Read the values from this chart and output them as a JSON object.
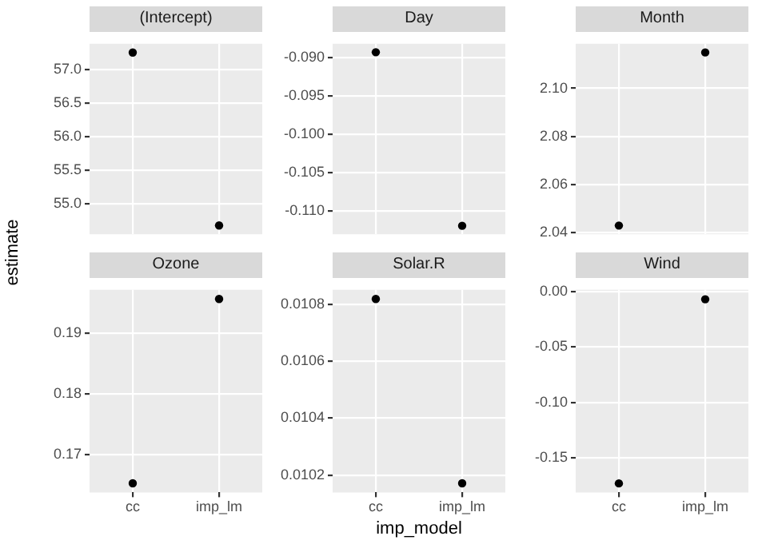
{
  "chart_data": [
    {
      "type": "scatter",
      "title": "(Intercept)",
      "ylabel": "estimate",
      "categories": [
        null,
        null
      ],
      "series": [
        {
          "color": "#000000",
          "values": [
            57.25,
            54.68
          ]
        }
      ],
      "ylim": [
        54.55,
        57.38
      ],
      "yticks": [
        {
          "value": 55,
          "label": "55.0"
        },
        55.5,
        {
          "value": 56,
          "label": "56.0"
        },
        56.5,
        {
          "value": 57,
          "label": "57.0"
        }
      ],
      "grid": true,
      "marker": "circle",
      "tick_labels": "y"
    },
    {
      "type": "scatter",
      "title": "Day",
      "categories": [
        null,
        null
      ],
      "series": [
        {
          "color": "#000000",
          "values": [
            -0.0893,
            -0.1119
          ]
        }
      ],
      "ylim": [
        -0.113,
        -0.0882
      ],
      "yticks": [
        {
          "value": -0.11,
          "label": "-0.110"
        },
        -0.105,
        {
          "value": -0.1,
          "label": "-0.100"
        },
        -0.095,
        {
          "value": -0.09,
          "label": "-0.090"
        }
      ],
      "grid": true,
      "marker": "circle",
      "tick_labels": "y"
    },
    {
      "type": "scatter",
      "title": "Month",
      "categories": [
        null,
        null
      ],
      "series": [
        {
          "color": "#000000",
          "values": [
            2.043,
            2.1149
          ]
        }
      ],
      "ylim": [
        2.0394,
        2.1185
      ],
      "yticks": [
        2.04,
        2.06,
        2.08,
        {
          "value": 2.1,
          "label": "2.10"
        }
      ],
      "grid": true,
      "marker": "circle",
      "tick_labels": "y"
    },
    {
      "type": "scatter",
      "title": "Ozone",
      "categories": [
        "cc",
        "imp_lm"
      ],
      "series": [
        {
          "color": "#000000",
          "values": [
            0.1653,
            0.1956
          ]
        }
      ],
      "ylim": [
        0.1638,
        0.1971
      ],
      "yticks": [
        0.17,
        0.18,
        0.19
      ],
      "grid": true,
      "marker": "circle"
    },
    {
      "type": "scatter",
      "title": "Solar.R",
      "xlabel": "imp_model",
      "categories": [
        "cc",
        "imp_lm"
      ],
      "series": [
        {
          "color": "#000000",
          "values": [
            0.010818,
            0.010171
          ]
        }
      ],
      "ylim": [
        0.010139,
        0.01085
      ],
      "yticks": [
        0.0102,
        0.0104,
        0.0106,
        0.0108
      ],
      "grid": true,
      "marker": "circle"
    },
    {
      "type": "scatter",
      "title": "Wind",
      "categories": [
        "cc",
        "imp_lm"
      ],
      "series": [
        {
          "color": "#000000",
          "values": [
            -0.173,
            -0.007
          ]
        }
      ],
      "ylim": [
        -0.1811,
        0.0015
      ],
      "yticks": [
        -0.15,
        {
          "value": -0.1,
          "label": "-0.10"
        },
        -0.05,
        {
          "value": 0,
          "label": "0.00"
        }
      ],
      "grid": true,
      "marker": "circle"
    }
  ]
}
